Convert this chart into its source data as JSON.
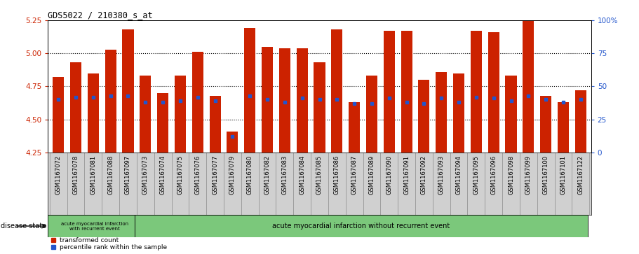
{
  "title": "GDS5022 / 210380_s_at",
  "samples": [
    "GSM1167072",
    "GSM1167078",
    "GSM1167081",
    "GSM1167088",
    "GSM1167097",
    "GSM1167073",
    "GSM1167074",
    "GSM1167075",
    "GSM1167076",
    "GSM1167077",
    "GSM1167079",
    "GSM1167080",
    "GSM1167082",
    "GSM1167083",
    "GSM1167084",
    "GSM1167085",
    "GSM1167086",
    "GSM1167087",
    "GSM1167089",
    "GSM1167090",
    "GSM1167091",
    "GSM1167092",
    "GSM1167093",
    "GSM1167094",
    "GSM1167095",
    "GSM1167096",
    "GSM1167098",
    "GSM1167099",
    "GSM1167100",
    "GSM1167101",
    "GSM1167122"
  ],
  "red_values": [
    4.82,
    4.93,
    4.85,
    5.03,
    5.18,
    4.83,
    4.7,
    4.83,
    5.01,
    4.68,
    4.41,
    5.19,
    5.05,
    5.04,
    5.04,
    4.93,
    5.18,
    4.63,
    4.83,
    5.17,
    5.17,
    4.8,
    4.86,
    4.85,
    5.17,
    5.16,
    4.83,
    5.25,
    4.68,
    4.63,
    4.72
  ],
  "blue_values_pct": [
    40,
    42,
    42,
    43,
    43,
    38,
    38,
    39,
    42,
    39,
    12,
    43,
    40,
    38,
    41,
    40,
    40,
    37,
    37,
    41,
    38,
    37,
    41,
    38,
    42,
    41,
    39,
    43,
    40,
    38,
    40
  ],
  "group1_count": 5,
  "group1_label": "acute myocardial infarction\nwith recurrent event",
  "group2_label": "acute myocardial infarction without recurrent event",
  "ylim_left": [
    4.25,
    5.25
  ],
  "yticks_left": [
    4.25,
    4.5,
    4.75,
    5.0,
    5.25
  ],
  "ylim_right": [
    0,
    100
  ],
  "yticks_right": [
    0,
    25,
    50,
    75,
    100
  ],
  "bar_color": "#cc2200",
  "blue_color": "#2255cc",
  "bg_color": "#d0d0d0",
  "green_bg": "#7bc87b",
  "ylabel_left_color": "#cc2200",
  "ylabel_right_color": "#2255cc",
  "grid_values": [
    4.5,
    4.75,
    5.0
  ]
}
